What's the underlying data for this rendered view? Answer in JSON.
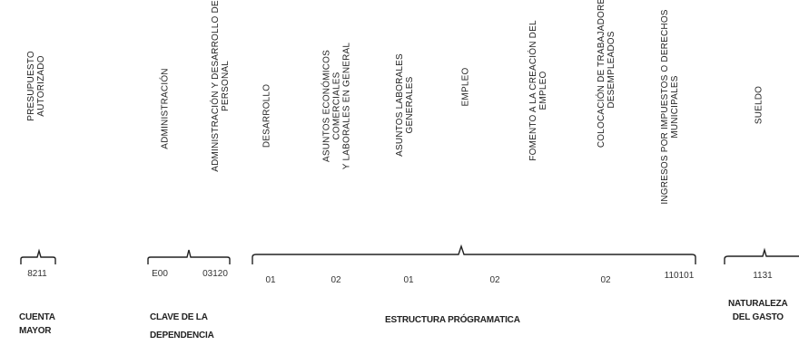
{
  "headers": {
    "presupuesto": "PRESUPUESTO\nAUTORIZADO",
    "administracion": "ADMINISTRACIÓN",
    "admin_desarrollo": "ADMINISTRACIÓN Y DESARROLLO DE\nPERSONAL",
    "desarrollo": "DESARROLLO",
    "asuntos_economicos": "ASUNTOS ECONÓMICOS\nCOMERCIALES\nY LABORALES EN GENERAL",
    "asuntos_laborales": "ASUNTOS LABORALES\nGENERALES",
    "empleo": "EMPLEO",
    "fomento": "FOMENTO A LA CREACIÓN DEL\nEMPLEO",
    "colocacion": "COLOCACIÓN DE TRABAJADORES\nDESEMPLEADOS",
    "ingresos": "INGRESOS POR IMPUESTOS O DERECHOS\nMUNICIPALES",
    "sueldo": "SUELDO"
  },
  "codes": {
    "cuenta": "8211",
    "e00": "E00",
    "c03120": "03120",
    "c01a": "01",
    "c02a": "02",
    "c01b": "01",
    "c02b": "02",
    "c02c": "02",
    "c110101": "110101",
    "c1131": "1131"
  },
  "groups": {
    "cuenta_mayor": "CUENTA\nMAYOR",
    "clave_dependencia": "CLAVE DE LA\nDEPENDENCIA",
    "estructura": "ESTRUCTURA PRÓGRAMATICA",
    "naturaleza": "NATURALEZA\nDEL GASTO"
  }
}
